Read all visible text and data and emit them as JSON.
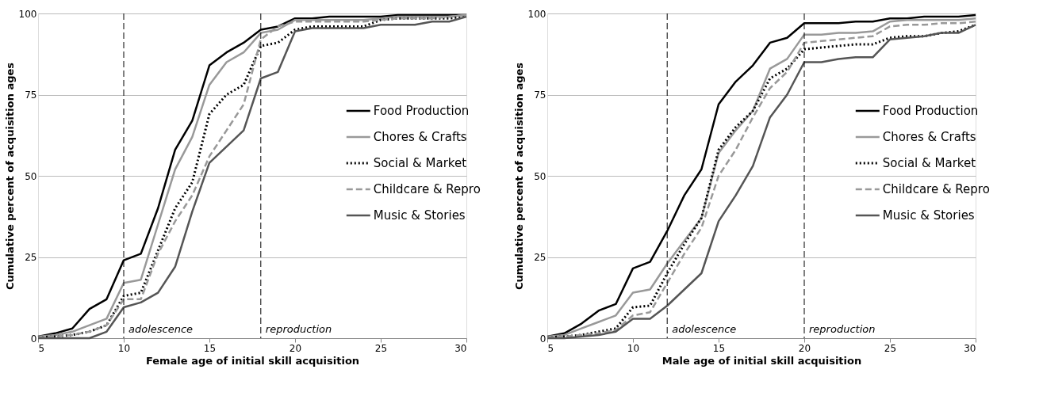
{
  "chart_data": [
    {
      "type": "line",
      "xlabel": "Female age of initial skill acquisition",
      "ylabel": "Cumulative percent of acquisition ages",
      "x": [
        5,
        6,
        7,
        8,
        9,
        10,
        11,
        12,
        13,
        14,
        15,
        16,
        17,
        18,
        19,
        20,
        21,
        22,
        23,
        24,
        25,
        26,
        27,
        28,
        29,
        30
      ],
      "xlim": [
        5,
        30
      ],
      "xticks": [
        5,
        10,
        15,
        20,
        25,
        30
      ],
      "ylim": [
        0,
        100
      ],
      "yticks": [
        0,
        25,
        50,
        75,
        100
      ],
      "grid": "y",
      "legend": "right",
      "marker": "none",
      "series": [
        {
          "name": "Food Production",
          "color": "#000000",
          "line_style": "solid",
          "values": [
            0.5,
            1.5,
            3,
            9,
            12,
            24,
            26,
            40,
            58,
            67,
            84,
            88,
            91,
            95,
            96,
            98.5,
            98.5,
            99,
            99,
            99,
            99,
            99.5,
            99.5,
            99.5,
            99.5,
            99.5
          ]
        },
        {
          "name": "Chores & Crafts",
          "color": "#999999",
          "line_style": "solid",
          "values": [
            0.5,
            1,
            2,
            4,
            6,
            17,
            18,
            35,
            52,
            62,
            78,
            85,
            88,
            94,
            95,
            98,
            98,
            98,
            98,
            98,
            98.5,
            99,
            99,
            99,
            99,
            99.5
          ]
        },
        {
          "name": "Social & Market",
          "color": "#000000",
          "line_style": "dotted",
          "values": [
            0.3,
            0.5,
            1,
            2,
            4,
            13,
            14,
            27,
            40,
            48,
            69,
            75,
            78,
            90,
            91,
            95,
            96,
            96,
            96,
            96,
            98,
            98.5,
            98.5,
            98.5,
            98.5,
            99
          ]
        },
        {
          "name": "Childcare & Repro",
          "color": "#999999",
          "line_style": "dashed",
          "values": [
            0.3,
            0.5,
            1,
            2,
            4,
            12,
            12,
            26,
            36,
            44,
            56,
            64,
            72,
            92,
            96,
            97.5,
            97.5,
            97.5,
            97.5,
            97.5,
            98,
            98.5,
            98.5,
            98.5,
            99,
            99.5
          ]
        },
        {
          "name": "Music & Stories",
          "color": "#555555",
          "line_style": "solid",
          "values": [
            0,
            0,
            0,
            0,
            2,
            9.5,
            11,
            14,
            22,
            39,
            54,
            59,
            64,
            80,
            82,
            94.5,
            95.5,
            95.5,
            95.5,
            95.5,
            96.5,
            96.5,
            96.5,
            97.5,
            97.5,
            99
          ]
        }
      ],
      "ref_lines": [
        {
          "axis": "x",
          "value": 10,
          "label": "adolescence",
          "line_style": "dashed"
        },
        {
          "axis": "x",
          "value": 18,
          "label": "reproduction",
          "line_style": "dashed"
        }
      ]
    },
    {
      "type": "line",
      "xlabel": "Male age of initial skill acquisition",
      "ylabel": "Cumulative percent of acquisition ages",
      "x": [
        5,
        6,
        7,
        8,
        9,
        10,
        11,
        12,
        13,
        14,
        15,
        16,
        17,
        18,
        19,
        20,
        21,
        22,
        23,
        24,
        25,
        26,
        27,
        28,
        29,
        30
      ],
      "xlim": [
        5,
        30
      ],
      "xticks": [
        5,
        10,
        15,
        20,
        25,
        30
      ],
      "ylim": [
        0,
        100
      ],
      "yticks": [
        0,
        25,
        50,
        75,
        100
      ],
      "grid": "y",
      "legend": "right",
      "marker": "none",
      "series": [
        {
          "name": "Food Production",
          "color": "#000000",
          "line_style": "solid",
          "values": [
            0.5,
            1.5,
            4.5,
            8.5,
            10.5,
            21.5,
            23.5,
            33,
            44,
            52,
            72,
            79,
            84,
            91,
            92.5,
            97,
            97,
            97,
            97.5,
            97.5,
            98.5,
            98.5,
            99,
            99,
            99,
            99.5
          ]
        },
        {
          "name": "Chores & Crafts",
          "color": "#999999",
          "line_style": "solid",
          "values": [
            0.5,
            1,
            3,
            5,
            7,
            14,
            15,
            23,
            30,
            37,
            57,
            64,
            70,
            83,
            86,
            93.5,
            93.5,
            94,
            94,
            94.5,
            97.5,
            98,
            98,
            98,
            98,
            98.5
          ]
        },
        {
          "name": "Social & Market",
          "color": "#000000",
          "line_style": "dotted",
          "values": [
            0.3,
            0.5,
            1,
            2,
            3,
            9.5,
            10,
            20,
            29,
            37,
            58,
            65,
            70,
            80,
            83,
            89,
            89.5,
            90,
            90.5,
            90.5,
            92.5,
            93,
            93,
            94,
            94.5,
            96.5
          ]
        },
        {
          "name": "Childcare & Repro",
          "color": "#999999",
          "line_style": "dashed",
          "values": [
            0.3,
            0.5,
            1,
            1.5,
            2.5,
            7,
            8,
            17,
            26,
            34,
            50,
            58,
            68,
            77,
            82,
            91,
            91.5,
            92,
            92.5,
            93,
            96,
            96.5,
            96.5,
            97,
            97,
            97.5
          ]
        },
        {
          "name": "Music & Stories",
          "color": "#555555",
          "line_style": "solid",
          "values": [
            0,
            0,
            0.5,
            1,
            2,
            6,
            6,
            10,
            15,
            20,
            36,
            44,
            53,
            68,
            75,
            85,
            85,
            86,
            86.5,
            86.5,
            92,
            92.5,
            93,
            94,
            94,
            96.5
          ]
        }
      ],
      "ref_lines": [
        {
          "axis": "x",
          "value": 12,
          "label": "adolescence",
          "line_style": "dashed"
        },
        {
          "axis": "x",
          "value": 20,
          "label": "reproduction",
          "line_style": "dashed"
        }
      ]
    }
  ]
}
